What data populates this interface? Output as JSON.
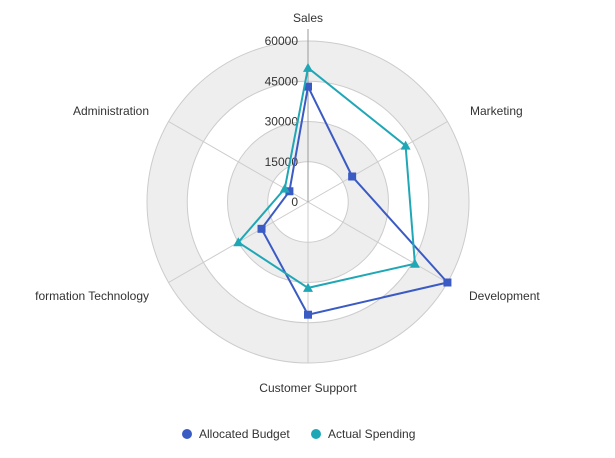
{
  "chart_data": {
    "type": "radar",
    "indicators": [
      "Sales",
      "Marketing",
      "Development",
      "Customer Support",
      "Information Technology",
      "Administration"
    ],
    "indicator_display": [
      "Sales",
      "Marketing",
      "Development",
      "Customer Support",
      "formation Technology",
      "Administration"
    ],
    "max": 60000,
    "ticks": [
      0,
      15000,
      30000,
      45000,
      60000
    ],
    "tick_labels": [
      "0",
      "15000",
      "30000",
      "45000",
      "60000"
    ],
    "series": [
      {
        "name": "Allocated Budget",
        "color": "#3b5bc4",
        "marker": "square",
        "values": [
          43000,
          19000,
          60000,
          42000,
          20000,
          8000
        ]
      },
      {
        "name": "Actual Spending",
        "color": "#20a7b6",
        "marker": "triangle",
        "values": [
          50000,
          42000,
          46000,
          32000,
          30000,
          10000
        ]
      }
    ],
    "legend_position": "bottom",
    "split_area_colors": [
      "#ffffff",
      "#eeeeee"
    ]
  }
}
